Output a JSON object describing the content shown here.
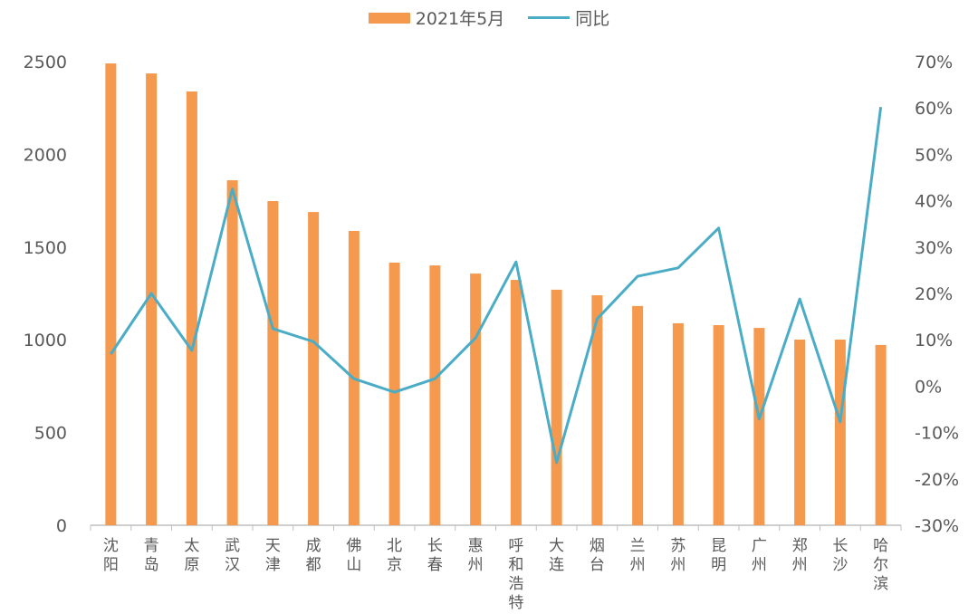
{
  "chart_data": {
    "type": "bar+line",
    "categories": [
      "沈阳",
      "青岛",
      "太原",
      "武汉",
      "天津",
      "成都",
      "佛山",
      "北京",
      "长春",
      "惠州",
      "呼和浩特",
      "大连",
      "烟台",
      "兰州",
      "苏州",
      "昆明",
      "广州",
      "郑州",
      "长沙",
      "哈尔滨"
    ],
    "series": [
      {
        "name": "2021年5月",
        "type": "bar",
        "axis": "left",
        "color": "#F5994E",
        "values": [
          2490,
          2436,
          2339,
          1860,
          1748,
          1689,
          1587,
          1416,
          1401,
          1357,
          1323,
          1270,
          1240,
          1182,
          1089,
          1079,
          1064,
          1001,
          1001,
          972
        ]
      },
      {
        "name": "同比",
        "type": "line",
        "axis": "right",
        "color": "#4BACC6",
        "values": [
          6.9,
          20.0,
          7.7,
          42.5,
          12.4,
          9.6,
          1.6,
          -1.3,
          1.6,
          10.4,
          26.8,
          -16.5,
          14.5,
          23.7,
          25.5,
          34.1,
          -7.1,
          18.8,
          -7.7,
          60.2
        ]
      }
    ],
    "y_left": {
      "lim": [
        0,
        2500
      ],
      "ticks": [
        "0",
        "500",
        "1000",
        "1500",
        "2000",
        "2500"
      ]
    },
    "y_right": {
      "lim": [
        -30,
        70
      ],
      "ticks": [
        "-30%",
        "-20%",
        "-10%",
        "0%",
        "10%",
        "20%",
        "30%",
        "40%",
        "50%",
        "60%",
        "70%"
      ]
    },
    "legend_position": "top",
    "grid": false
  }
}
